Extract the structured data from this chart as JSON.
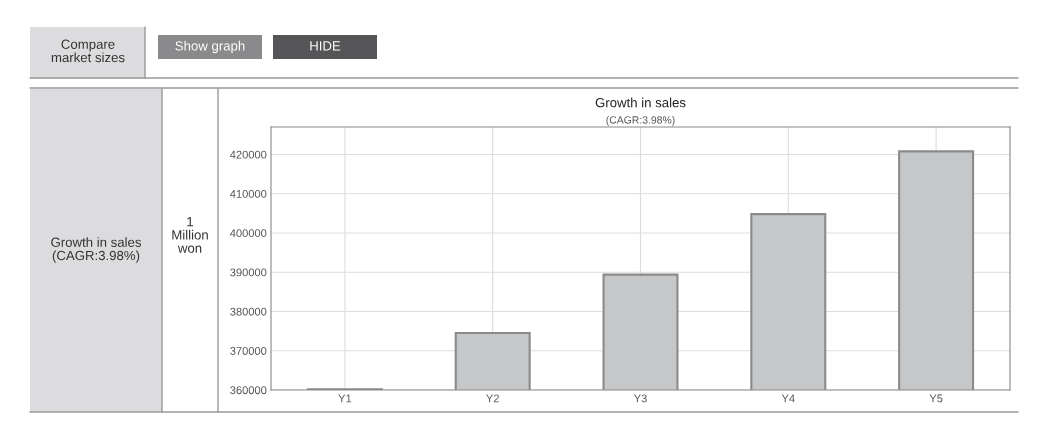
{
  "chart_data": {
    "type": "bar",
    "title": "Growth in sales",
    "subtitle": "(CAGR:3.98%)",
    "categories": [
      "Y1",
      "Y2",
      "Y3",
      "Y4",
      "Y5"
    ],
    "values": [
      360200,
      374500,
      389400,
      404800,
      420800
    ],
    "color": "#c6c7c9",
    "ylim": [
      360000,
      427000
    ],
    "yticks": [
      360000,
      370000,
      380000,
      390000,
      400000,
      410000,
      420000
    ],
    "grid": true,
    "annotations": [
      "Compare\nmarket sizes",
      "Show graph",
      "HIDE",
      "Growth in sales\n(CAGR:3.98%)",
      "1\nMillion\nwon"
    ]
  }
}
